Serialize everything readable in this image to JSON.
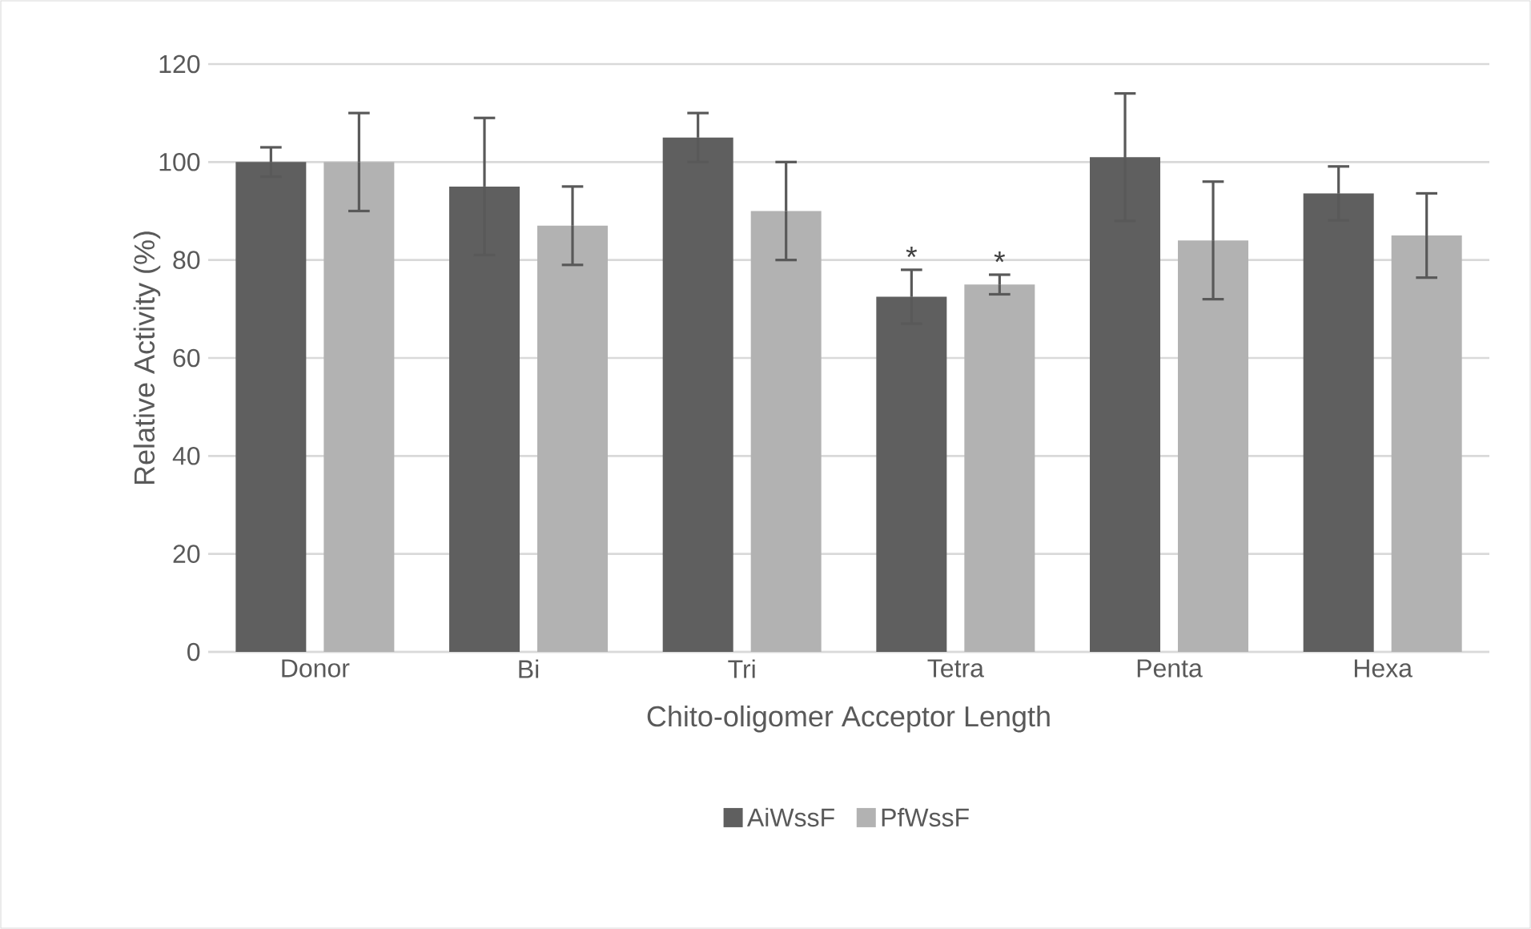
{
  "chart_data": {
    "type": "bar",
    "xlabel": "Chito-oligomer Acceptor Length",
    "ylabel": "Relative Activity (%)",
    "categories": [
      "Donor",
      "Bi",
      "Tri",
      "Tetra",
      "Penta",
      "Hexa"
    ],
    "series": [
      {
        "name": "AiWssF",
        "color": "#5f5f5f",
        "values": [
          100,
          95,
          105,
          72.5,
          101,
          93.6
        ],
        "errors": [
          3,
          14,
          5,
          5.5,
          13,
          5.5
        ]
      },
      {
        "name": "PfWssF",
        "color": "#b2b2b2",
        "values": [
          100,
          87,
          90,
          75,
          84,
          85
        ],
        "errors": [
          10,
          8,
          10,
          2,
          12,
          8.6
        ]
      }
    ],
    "ylim": [
      0,
      120
    ],
    "yticks": [
      0,
      20,
      40,
      60,
      80,
      100,
      120
    ],
    "grid": "y",
    "legend": "bottom",
    "annotations": [
      "*",
      "*"
    ]
  }
}
